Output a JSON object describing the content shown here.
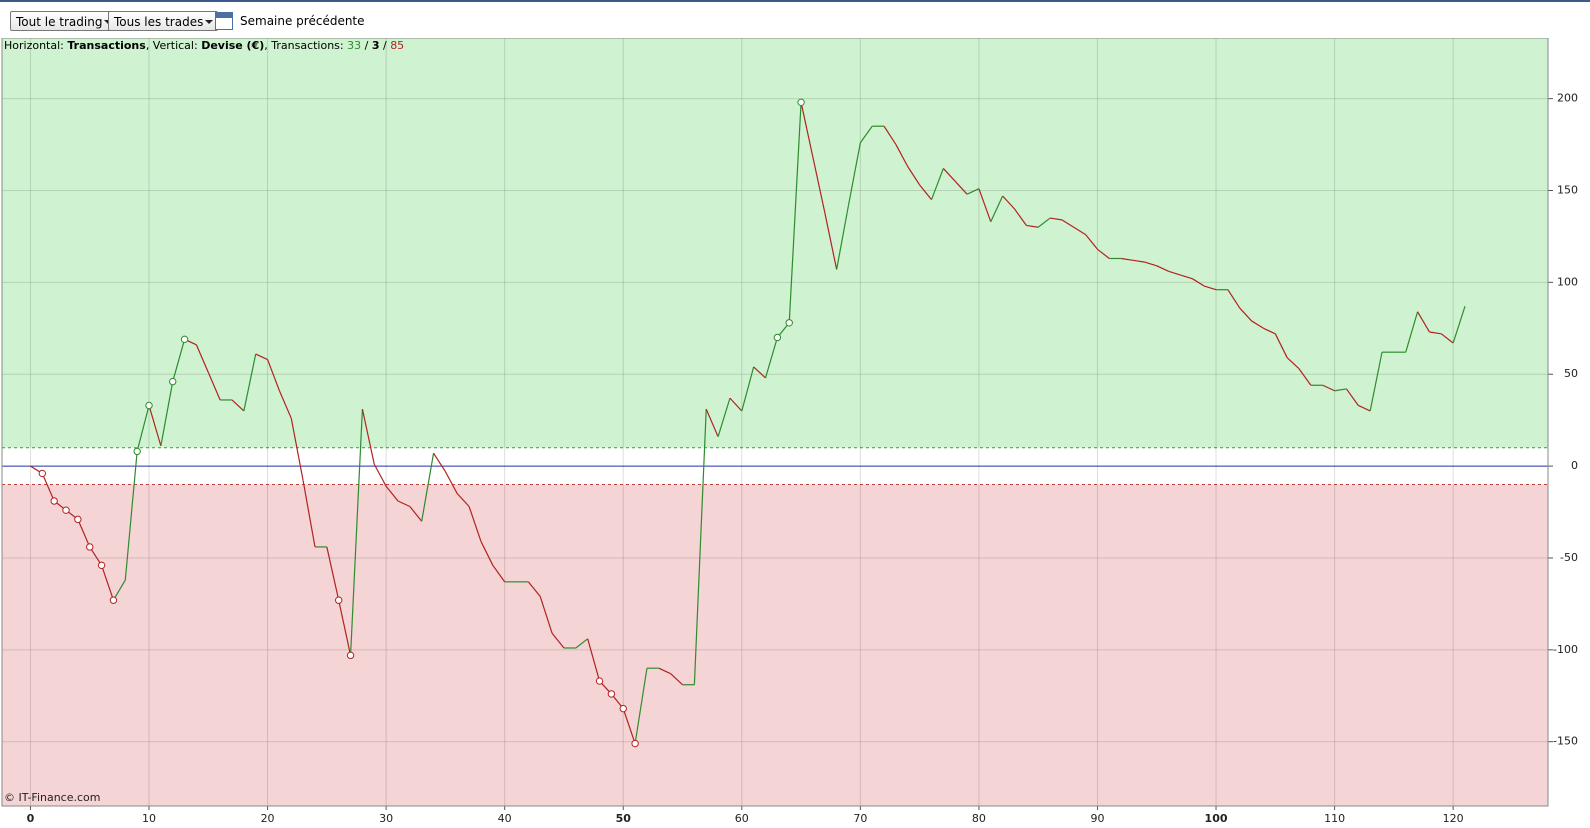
{
  "toolbar": {
    "scope": "Tout le trading",
    "trades": "Tous les trades",
    "period": "Semaine précédente"
  },
  "chart_data": {
    "type": "line",
    "info": [
      "Horizontal: ",
      "Transactions",
      ", Vertical: ",
      "Devise (€)",
      ", Transactions: ",
      "33",
      " / ",
      "3",
      " / ",
      "85"
    ],
    "watermark": "© IT-Finance.com",
    "x": [
      0,
      1,
      2,
      3,
      4,
      5,
      6,
      7,
      8,
      9,
      10,
      11,
      12,
      13,
      14,
      15,
      16,
      17,
      18,
      19,
      20,
      21,
      22,
      23,
      24,
      25,
      26,
      27,
      28,
      29,
      30,
      31,
      32,
      33,
      34,
      35,
      36,
      37,
      38,
      39,
      40,
      41,
      42,
      43,
      44,
      45,
      46,
      47,
      48,
      49,
      50,
      51,
      52,
      53,
      54,
      55,
      56,
      57,
      58,
      59,
      60,
      61,
      62,
      63,
      64,
      65,
      66,
      67,
      68,
      69,
      70,
      71,
      72,
      73,
      74,
      75,
      76,
      77,
      78,
      79,
      80,
      81,
      82,
      83,
      84,
      85,
      86,
      87,
      88,
      89,
      90,
      91,
      92,
      93,
      94,
      95,
      96,
      97,
      98,
      99,
      100,
      101,
      102,
      103,
      104,
      105,
      106,
      107,
      108,
      109,
      110,
      111,
      112,
      113,
      114,
      115,
      116,
      117,
      118,
      119,
      120,
      121
    ],
    "series": [
      {
        "up_color": "#2e8b2e",
        "down_color": "#b22222",
        "values": [
          0,
          -4,
          -19,
          -24,
          -29,
          -44,
          -54,
          -73,
          -62,
          8,
          33,
          11,
          46,
          69,
          66,
          51,
          36,
          36,
          30,
          61,
          58,
          41,
          26,
          -8,
          -44,
          -44,
          -73,
          -103,
          31,
          1,
          -11,
          -19,
          -22,
          -30,
          7,
          -3,
          -15,
          -22,
          -41,
          -54,
          -63,
          -63,
          -63,
          -71,
          -91,
          -99,
          -99,
          -94,
          -117,
          -124,
          -132,
          -151,
          -110,
          -110,
          -113,
          -119,
          -119,
          31,
          16,
          37,
          30,
          54,
          48,
          70,
          78,
          198,
          168,
          138,
          107,
          142,
          176,
          185,
          185,
          175,
          163,
          153,
          145,
          162,
          155,
          148,
          151,
          133,
          147,
          140,
          131,
          130,
          135,
          134,
          130,
          126,
          118,
          113,
          113,
          112,
          111,
          109,
          106,
          104,
          102,
          98,
          96,
          96,
          86,
          79,
          75,
          72,
          59,
          53,
          44,
          44,
          41,
          42,
          33,
          30,
          62,
          62,
          62,
          84,
          73,
          72,
          67,
          87
        ]
      }
    ],
    "marker_indices": [
      1,
      2,
      3,
      4,
      5,
      6,
      7,
      9,
      10,
      12,
      13,
      26,
      27,
      48,
      49,
      50,
      51,
      63,
      64,
      65
    ],
    "xlim": [
      -2.4,
      128
    ],
    "ylim": [
      -185,
      233
    ],
    "xticks": [
      0,
      10,
      20,
      30,
      40,
      50,
      60,
      70,
      80,
      90,
      100,
      110,
      120
    ],
    "xticks_bold": [
      0,
      50,
      100
    ],
    "yticks": [
      -150,
      -100,
      -50,
      0,
      50,
      100,
      150,
      200
    ],
    "upper_band": 10,
    "lower_band": -10,
    "grid": true
  }
}
